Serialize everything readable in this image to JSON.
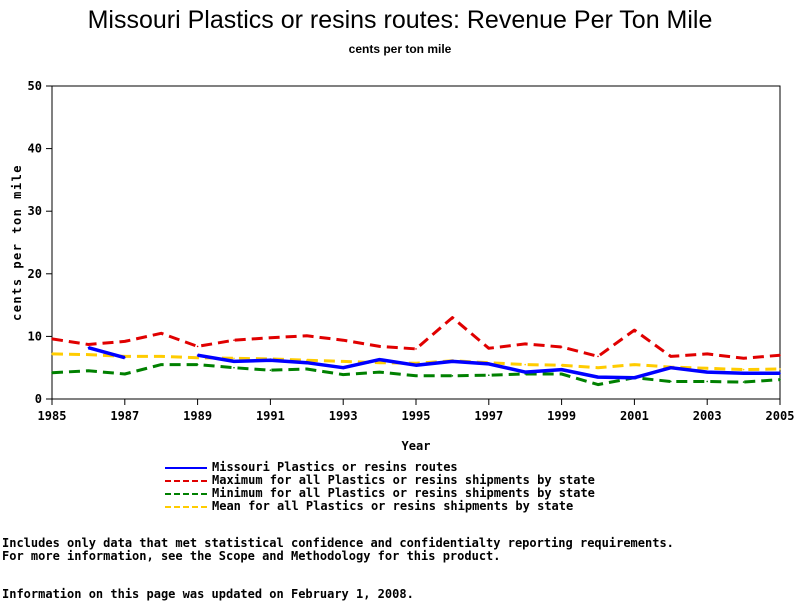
{
  "header": {
    "title": "Missouri Plastics or resins routes: Revenue Per Ton Mile",
    "subtitle": "cents per ton mile"
  },
  "chart_data": {
    "type": "line",
    "title": "Missouri Plastics or resins routes: Revenue Per Ton Mile",
    "subtitle": "cents per ton mile",
    "xlabel": "Year",
    "ylabel": "cents per ton mile",
    "xlim": [
      1985,
      2005
    ],
    "ylim": [
      0,
      50
    ],
    "xticks": [
      "1985",
      "1987",
      "1989",
      "1991",
      "1993",
      "1995",
      "1997",
      "1999",
      "2001",
      "2003",
      "2005"
    ],
    "yticks": [
      "0",
      "10",
      "20",
      "30",
      "40",
      "50"
    ],
    "grid": false,
    "legend_position": "bottom",
    "series": [
      {
        "name": "Missouri Plastics or resins routes",
        "color": "#0000ff",
        "style": "solid",
        "x": [
          1986,
          1987,
          1988,
          1989,
          1990,
          1991,
          1992,
          1993,
          1994,
          1995,
          1996,
          1997,
          1998,
          1999,
          2000,
          2001,
          2002,
          2003,
          2004,
          2005
        ],
        "y": [
          8.2,
          6.6,
          null,
          7.0,
          6.0,
          6.2,
          5.8,
          5.0,
          6.3,
          5.4,
          6.0,
          5.6,
          4.3,
          4.7,
          3.5,
          3.4,
          5.0,
          4.3,
          4.1,
          4.1
        ]
      },
      {
        "name": "Maximum for all Plastics or resins shipments by state",
        "color": "#e00000",
        "style": "dashed",
        "x": [
          1985,
          1986,
          1987,
          1988,
          1989,
          1990,
          1991,
          1992,
          1993,
          1994,
          1995,
          1996,
          1997,
          1998,
          1999,
          2000,
          2001,
          2002,
          2003,
          2004,
          2005
        ],
        "y": [
          9.6,
          8.7,
          9.2,
          10.5,
          8.4,
          9.4,
          9.8,
          10.1,
          9.4,
          8.4,
          8.0,
          13.0,
          8.1,
          8.8,
          8.3,
          6.8,
          11.0,
          6.8,
          7.2,
          6.5,
          7.0
        ]
      },
      {
        "name": "Minimum for all Plastics or resins shipments by state",
        "color": "#008000",
        "style": "dashed",
        "x": [
          1985,
          1986,
          1987,
          1988,
          1989,
          1990,
          1991,
          1992,
          1993,
          1994,
          1995,
          1996,
          1997,
          1998,
          1999,
          2000,
          2001,
          2002,
          2003,
          2004,
          2005
        ],
        "y": [
          4.2,
          4.5,
          4.0,
          5.5,
          5.5,
          5.0,
          4.6,
          4.8,
          3.9,
          4.3,
          3.7,
          3.7,
          3.8,
          4.0,
          4.0,
          2.3,
          3.4,
          2.8,
          2.8,
          2.7,
          3.1
        ]
      },
      {
        "name": "Mean for all Plastics or resins shipments by state",
        "color": "#ffcc00",
        "style": "dashed",
        "x": [
          1985,
          1986,
          1987,
          1988,
          1989,
          1990,
          1991,
          1992,
          1993,
          1994,
          1995,
          1996,
          1997,
          1998,
          1999,
          2000,
          2001,
          2002,
          2003,
          2004,
          2005
        ],
        "y": [
          7.2,
          7.1,
          6.8,
          6.8,
          6.6,
          6.5,
          6.4,
          6.2,
          6.0,
          5.8,
          5.7,
          6.1,
          5.8,
          5.5,
          5.4,
          5.0,
          5.5,
          5.1,
          4.9,
          4.7,
          4.8
        ]
      }
    ]
  },
  "notes": {
    "line1": "Includes only data that met statistical confidence and confidentialty reporting requirements.",
    "line2": "For more information, see the Scope and Methodology for this product.",
    "updated": "Information on this page was updated on February 1, 2008."
  }
}
